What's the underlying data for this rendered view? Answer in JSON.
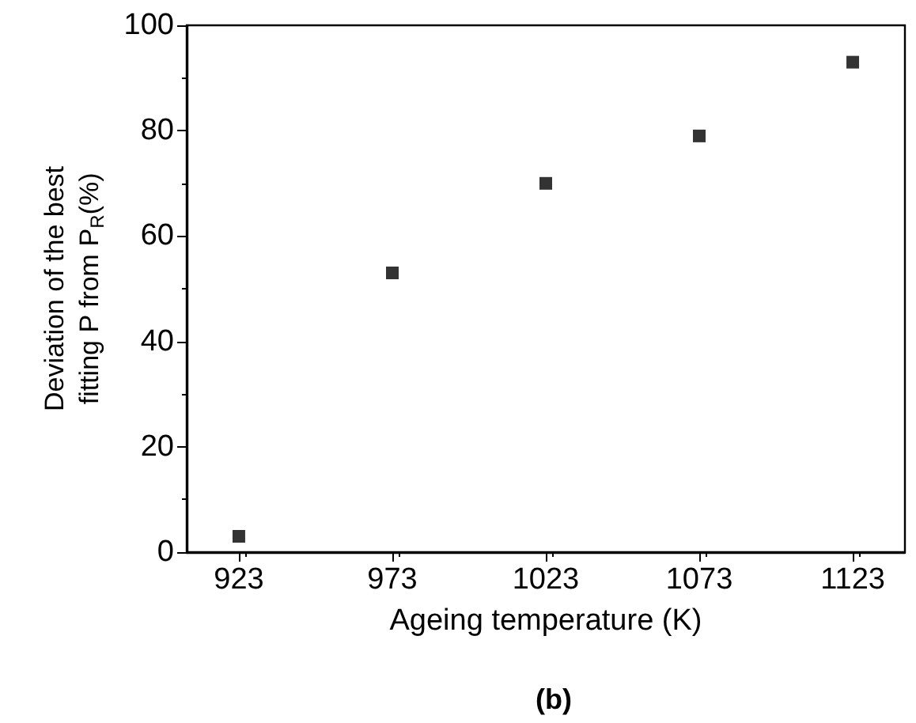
{
  "chart_data": {
    "type": "scatter",
    "xlabel": "Ageing temperature (K)",
    "ylabel": "Deviation of the best\nfitting P from P$_{R}$(%)",
    "annotations": [
      "(b)"
    ],
    "x": [
      923,
      973,
      1023,
      1073,
      1123
    ],
    "series": [
      {
        "color": "#000000",
        "values": [
          3,
          53,
          70,
          79,
          93
        ]
      }
    ],
    "xlim": [
      906,
      1140
    ],
    "xticks": [
      923,
      973,
      1023,
      1073,
      1123
    ],
    "ylim": [
      0,
      100
    ],
    "yticks": [
      0,
      20,
      40,
      60,
      80,
      100
    ],
    "marker": "square",
    "grid": false
  }
}
